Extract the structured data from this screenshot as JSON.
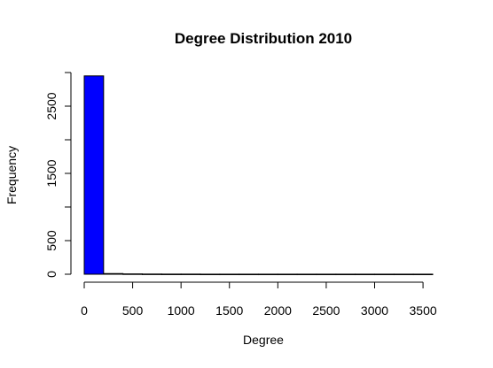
{
  "chart_data": {
    "type": "bar",
    "title": "Degree Distribution 2010",
    "xlabel": "Degree",
    "ylabel": "Frequency",
    "bar_color": "#0000ff",
    "bin_width": 200,
    "bins_start": [
      0,
      200,
      400,
      600,
      800,
      1000,
      1200,
      1400,
      1600,
      1800,
      2000,
      2200,
      2400,
      2600,
      2800,
      3000,
      3200,
      3400
    ],
    "values": [
      2950,
      10,
      5,
      3,
      2,
      2,
      1,
      1,
      1,
      1,
      1,
      1,
      1,
      1,
      1,
      1,
      1,
      1
    ],
    "xlim": [
      0,
      3600
    ],
    "ylim": [
      0,
      3000
    ],
    "x_ticks": [
      0,
      500,
      1000,
      1500,
      2000,
      2500,
      3000,
      3500
    ],
    "x_tick_labels": [
      "0",
      "500",
      "1000",
      "1500",
      "2000",
      "2500",
      "3000",
      "3500"
    ],
    "y_ticks": [
      0,
      500,
      1000,
      1500,
      2000,
      2500,
      3000
    ],
    "y_tick_labels": [
      "0",
      "500",
      "",
      "1500",
      "",
      "2500",
      ""
    ],
    "grid": false
  }
}
